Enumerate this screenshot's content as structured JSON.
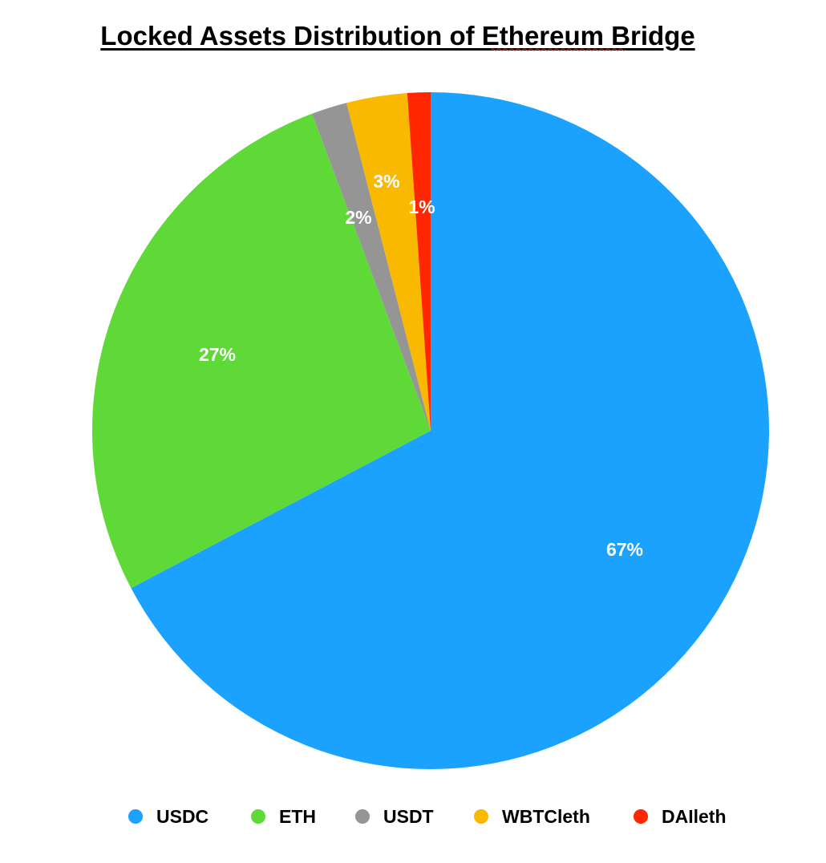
{
  "chart_data": {
    "type": "pie",
    "title": "Locked Assets Distribution of Ethereum Bridge",
    "categories": [
      "USDC",
      "ETH",
      "USDT",
      "WBTCleth",
      "DAIleth"
    ],
    "values": [
      67.3,
      27.0,
      1.7,
      2.9,
      1.1
    ],
    "labels": [
      "67%",
      "27%",
      "2%",
      "3%",
      "1%"
    ],
    "colors": [
      "#1ba1fe",
      "#5fd937",
      "#959595",
      "#f9b900",
      "#ff2600"
    ],
    "start_angle_deg": 0,
    "direction": "clockwise",
    "legend_position": "bottom",
    "label_color": "#ffffff"
  }
}
